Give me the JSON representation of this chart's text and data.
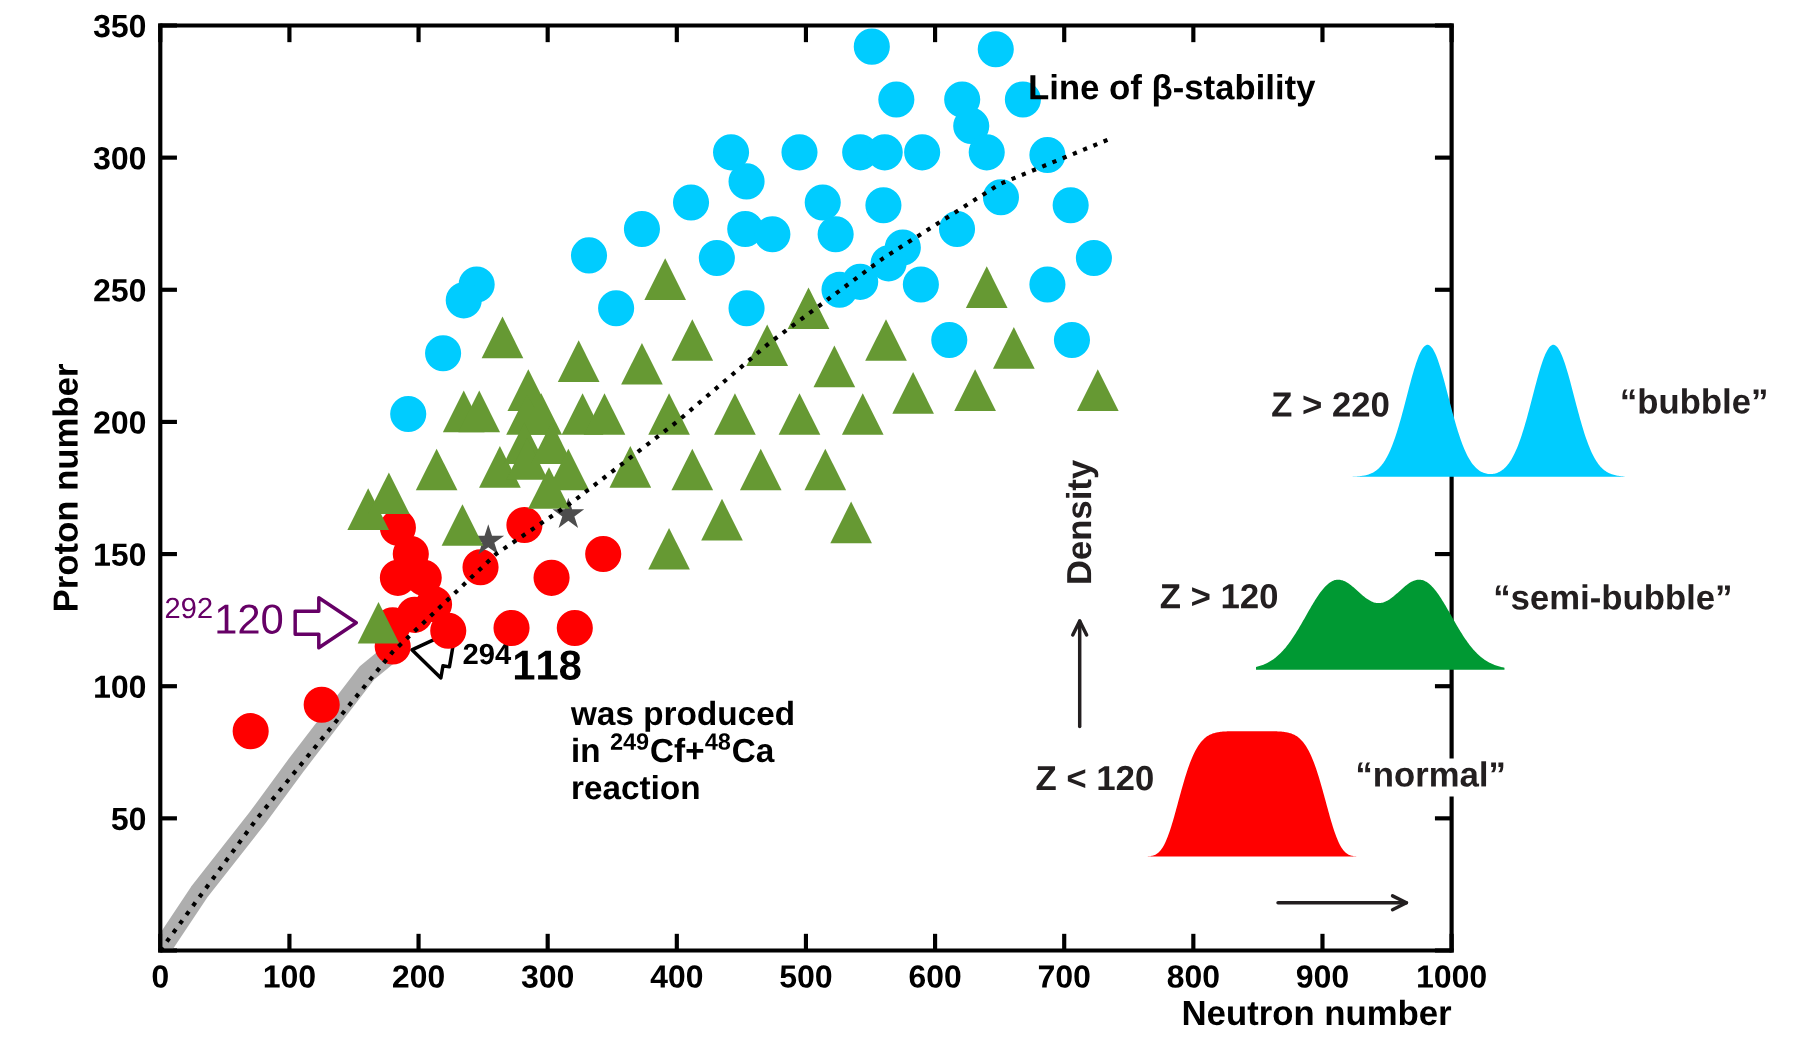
{
  "chart_data": {
    "type": "scatter",
    "xlabel": "Neutron number",
    "ylabel": "Proton number",
    "xlim": [
      0,
      1000
    ],
    "ylim": [
      0,
      350
    ],
    "xticks": [
      0,
      100,
      200,
      300,
      400,
      500,
      600,
      700,
      800,
      900,
      1000
    ],
    "yticks": [
      {
        "value": 0,
        "label": null
      },
      50,
      100,
      150,
      200,
      250,
      300,
      350
    ],
    "grid": false,
    "legend": false,
    "series": [
      {
        "type": "line",
        "color": "#9a9a9a",
        "line_style": "solid",
        "x": [
          0,
          30,
          75,
          105,
          160,
          180
        ],
        "values": [
          0,
          22,
          50,
          70,
          105,
          113
        ]
      },
      {
        "type": "line",
        "color": "#000000",
        "line_style": "dotted",
        "x": [
          0,
          75,
          180,
          260,
          320,
          400,
          472,
          560,
          650,
          735
        ],
        "values": [
          0,
          50,
          113,
          150,
          170,
          200,
          230,
          262,
          290,
          307
        ]
      },
      {
        "marker": "circle",
        "color": "#00ccff",
        "x": [
          551,
          647,
          570,
          621,
          668,
          628,
          442,
          495,
          542,
          561,
          590,
          640,
          687,
          454,
          411,
          513,
          560,
          705,
          373,
          453,
          474,
          523,
          617,
          332,
          575,
          651,
          431,
          723,
          526,
          542,
          564,
          589,
          687,
          245,
          235,
          219,
          353,
          454,
          611,
          706,
          192
        ],
        "values": [
          342,
          341,
          322,
          322,
          322,
          312,
          302,
          302,
          302,
          302,
          302,
          302,
          301,
          291,
          283,
          283,
          282,
          282,
          273,
          273,
          271,
          271,
          273,
          263,
          266,
          285,
          262,
          262,
          250,
          253,
          260,
          252,
          252,
          252,
          246,
          226,
          243,
          243,
          231,
          231,
          203
        ]
      },
      {
        "marker": "triangle",
        "color": "#669933",
        "x": [
          161,
          177,
          265,
          412,
          391,
          640,
          285,
          324,
          373,
          470,
          502,
          522,
          562,
          661,
          726,
          235,
          247,
          284,
          295,
          327,
          344,
          394,
          445,
          495,
          544,
          583,
          631,
          214,
          263,
          282,
          284,
          303,
          316,
          364,
          412,
          465,
          515,
          301,
          234,
          435,
          535,
          394,
          169
        ],
        "values": [
          167,
          173,
          232,
          231,
          254,
          251,
          212,
          223,
          222,
          229,
          243,
          221,
          231,
          228,
          212,
          204,
          204,
          203,
          203,
          203,
          203,
          203,
          203,
          203,
          203,
          211,
          212,
          182,
          183,
          192,
          186,
          192,
          182,
          183,
          182,
          182,
          182,
          175,
          161,
          163,
          162,
          152,
          124
        ]
      },
      {
        "marker": "circle",
        "color": "#ff0000",
        "x": [
          184,
          194,
          184,
          204,
          212,
          197,
          223,
          180,
          180,
          248,
          282,
          303,
          343,
          125,
          70,
          272,
          321
        ],
        "values": [
          160,
          150,
          141,
          141,
          131,
          127,
          121,
          123,
          115,
          145,
          161,
          141,
          150,
          93,
          83,
          122,
          122
        ]
      },
      {
        "marker": "star",
        "color": "#4d4d4d",
        "x": [
          254,
          316
        ],
        "values": [
          155,
          165
        ]
      }
    ],
    "annotations": [
      "Line of β-stability",
      {
        "text": "$^{292}$120",
        "x": 169,
        "y": 124
      },
      {
        "text": "$^{294}$118",
        "x": 180,
        "y": 115
      },
      "was produced\nin $^{249}$Cf+$^{48}$Ca\nreaction",
      "Z > 220",
      "“bubble”",
      "Z > 120",
      "“semi-bubble”",
      "Z < 120",
      "“normal”",
      "Density"
    ]
  }
}
